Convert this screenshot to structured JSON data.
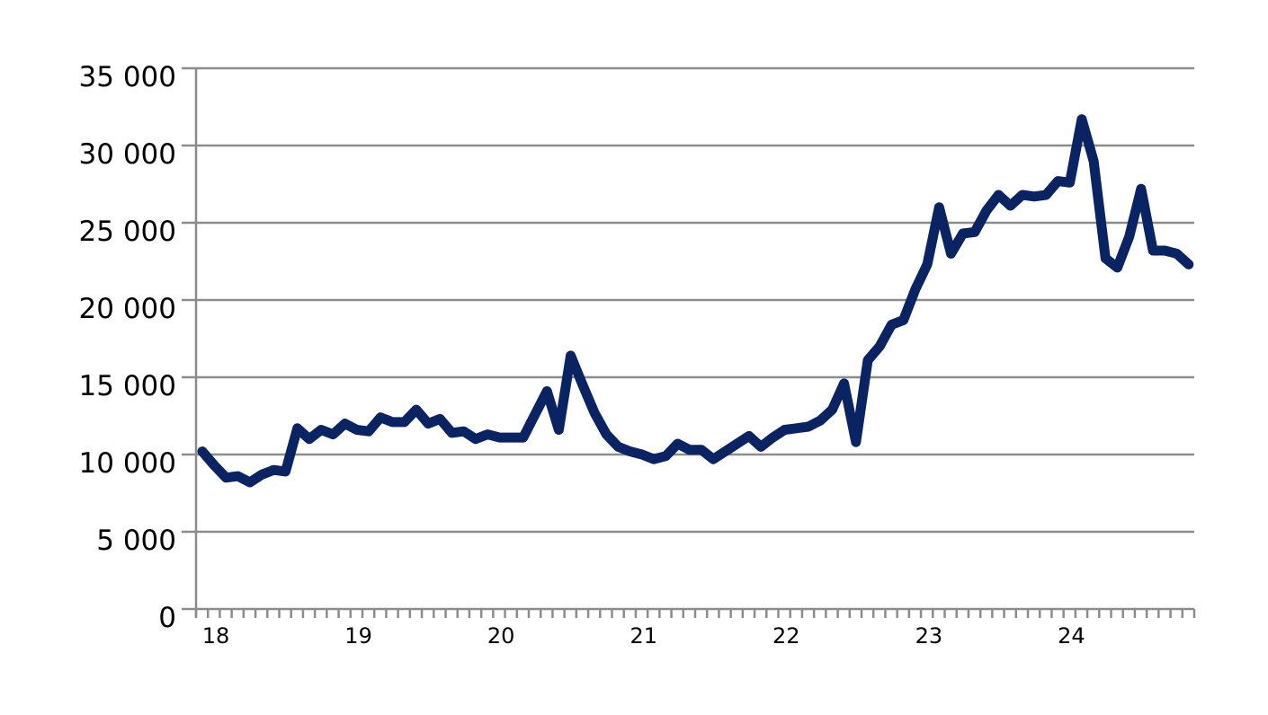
{
  "chart_data": {
    "type": "line",
    "title": "",
    "xlabel": "",
    "ylabel": "",
    "ylim": [
      0,
      35000
    ],
    "grid": true,
    "legend": null,
    "y_ticks": [
      0,
      5000,
      10000,
      15000,
      20000,
      25000,
      30000,
      35000
    ],
    "y_tick_labels": [
      "0",
      "5 000",
      "10 000",
      "15 000",
      "20 000",
      "25 000",
      "30 000",
      "35 000"
    ],
    "x_tick_labels": [
      "18",
      "19",
      "20",
      "21",
      "22",
      "23",
      "24"
    ],
    "x_minor_ticks": "monthly",
    "line_color": "#0a2463",
    "grid_color": "#8c8c8c",
    "series": [
      {
        "name": "series-1",
        "x": [
          "2018-01",
          "2018-02",
          "2018-03",
          "2018-04",
          "2018-05",
          "2018-06",
          "2018-07",
          "2018-08",
          "2018-09",
          "2018-10",
          "2018-11",
          "2018-12",
          "2019-01",
          "2019-02",
          "2019-03",
          "2019-04",
          "2019-05",
          "2019-06",
          "2019-07",
          "2019-08",
          "2019-09",
          "2019-10",
          "2019-11",
          "2019-12",
          "2020-01",
          "2020-02",
          "2020-03",
          "2020-04",
          "2020-05",
          "2020-06",
          "2020-07",
          "2020-08",
          "2020-09",
          "2020-10",
          "2020-11",
          "2020-12",
          "2021-01",
          "2021-02",
          "2021-03",
          "2021-04",
          "2021-05",
          "2021-06",
          "2021-07",
          "2021-08",
          "2021-09",
          "2021-10",
          "2021-11",
          "2021-12",
          "2022-01",
          "2022-02",
          "2022-03",
          "2022-04",
          "2022-05",
          "2022-06",
          "2022-07",
          "2022-08",
          "2022-09",
          "2022-10",
          "2022-11",
          "2022-12",
          "2023-01",
          "2023-02",
          "2023-03",
          "2023-04",
          "2023-05",
          "2023-06",
          "2023-07",
          "2023-08",
          "2023-09",
          "2023-10",
          "2023-11",
          "2023-12",
          "2024-01",
          "2024-02",
          "2024-03",
          "2024-04",
          "2024-05",
          "2024-06",
          "2024-07",
          "2024-08",
          "2024-09",
          "2024-10",
          "2024-11",
          "2024-12"
        ],
        "values": [
          10200,
          9300,
          8500,
          8600,
          8200,
          8700,
          9000,
          8900,
          11700,
          11000,
          11600,
          11300,
          12000,
          11600,
          11500,
          12400,
          12100,
          12100,
          12900,
          12000,
          12300,
          11400,
          11500,
          11000,
          11300,
          11100,
          11100,
          11100,
          12600,
          14100,
          11600,
          16400,
          14500,
          12700,
          11300,
          10500,
          10200,
          10000,
          9700,
          9900,
          10700,
          10300,
          10300,
          9700,
          10200,
          10700,
          11200,
          10500,
          11100,
          11600,
          11700,
          11800,
          12200,
          12900,
          14600,
          10800,
          16100,
          17000,
          18400,
          18700,
          20700,
          22300,
          26000,
          23000,
          24300,
          24400,
          25800,
          26800,
          26100,
          26800,
          26700,
          26800,
          27700,
          27600,
          31700,
          29000,
          22700,
          22100,
          24100,
          27200,
          23200,
          23200,
          23000,
          22300
        ]
      }
    ]
  },
  "axes": {
    "y_labels": [
      "35 000",
      "30 000",
      "25 000",
      "20 000",
      "15 000",
      "10 000",
      "5 000",
      "0"
    ],
    "x_labels": [
      "18",
      "19",
      "20",
      "21",
      "22",
      "23",
      "24"
    ]
  }
}
